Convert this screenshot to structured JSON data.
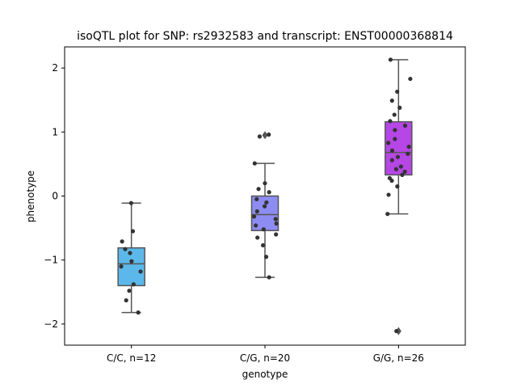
{
  "chart_data": {
    "type": "box",
    "title": "isoQTL plot for SNP: rs2932583 and transcript: ENST00000368814",
    "xlabel": "genotype",
    "ylabel": "phenotype",
    "ylim": [
      -2.33,
      2.33
    ],
    "yticks": [
      -2,
      -1,
      0,
      1,
      2
    ],
    "ytick_labels": [
      "−2",
      "−1",
      "0",
      "1",
      "2"
    ],
    "grid": false,
    "point_color": "#333333",
    "line_color": "#555555",
    "groups": [
      {
        "label": "C/C, n=12",
        "color": "#5cb8ea",
        "box": {
          "whisker_low": -1.82,
          "q1": -1.4,
          "median": -1.06,
          "q3": -0.81,
          "whisker_high": -0.11
        },
        "outliers": [],
        "points": [
          -0.11,
          -0.55,
          -0.71,
          -0.83,
          -0.89,
          -1.02,
          -1.1,
          -1.18,
          -1.38,
          -1.48,
          -1.63,
          -1.82
        ]
      },
      {
        "label": "C/G, n=20",
        "color": "#8c8cf2",
        "box": {
          "whisker_low": -1.27,
          "q1": -0.54,
          "median": -0.29,
          "q3": 0.0,
          "whisker_high": 0.51
        },
        "outliers": [
          0.95
        ],
        "points": [
          0.96,
          0.51,
          0.2,
          0.11,
          0.06,
          -0.05,
          -0.1,
          -0.16,
          -0.24,
          -0.32,
          -0.36,
          -0.43,
          -0.46,
          -0.52,
          -0.6,
          -0.65,
          -0.77,
          -0.95,
          -1.27,
          0.93
        ]
      },
      {
        "label": "G/G, n=26",
        "color": "#b646e6",
        "box": {
          "whisker_low": -0.28,
          "q1": 0.33,
          "median": 0.68,
          "q3": 1.16,
          "whisker_high": 2.13
        },
        "outliers": [
          -2.11
        ],
        "points": [
          2.13,
          1.83,
          1.63,
          1.49,
          1.38,
          1.27,
          1.17,
          1.1,
          1.03,
          0.89,
          0.83,
          0.77,
          0.71,
          0.66,
          0.61,
          0.56,
          0.46,
          0.42,
          0.38,
          0.33,
          0.28,
          0.24,
          0.15,
          0.02,
          -0.28,
          -2.11
        ]
      }
    ]
  }
}
